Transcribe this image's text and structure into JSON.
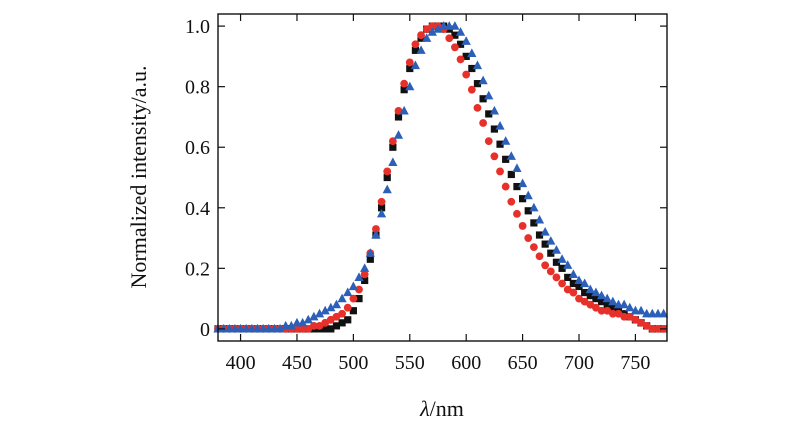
{
  "chart_data": {
    "type": "scatter",
    "xlabel_italic": "λ",
    "xlabel_rest": "/nm",
    "ylabel": "Normalized intensity/a.u.",
    "xlim": [
      380,
      778
    ],
    "ylim": [
      -0.04,
      1.04
    ],
    "xticks": [
      400,
      450,
      500,
      550,
      600,
      650,
      700,
      750
    ],
    "yticks": [
      0,
      0.2,
      0.4,
      0.6,
      0.8,
      1.0
    ],
    "ytick_labels": [
      "0",
      "0.2",
      "0.4",
      "0.6",
      "0.8",
      "1.0"
    ],
    "grid": false,
    "series": [
      {
        "marker": "square",
        "color": "#111111",
        "x": [
          380,
          385,
          390,
          395,
          400,
          405,
          410,
          415,
          420,
          425,
          430,
          435,
          440,
          445,
          450,
          455,
          460,
          465,
          470,
          475,
          480,
          485,
          490,
          495,
          500,
          505,
          510,
          515,
          520,
          525,
          530,
          535,
          540,
          545,
          550,
          555,
          560,
          565,
          570,
          575,
          580,
          585,
          590,
          595,
          600,
          605,
          610,
          615,
          620,
          625,
          630,
          635,
          640,
          645,
          650,
          655,
          660,
          665,
          670,
          675,
          680,
          685,
          690,
          695,
          700,
          705,
          710,
          715,
          720,
          725,
          730,
          735,
          740,
          745,
          750,
          755,
          760,
          765,
          770,
          775
        ],
        "y": [
          0.0,
          0.0,
          0.0,
          0.0,
          0.0,
          0.0,
          0.0,
          0.0,
          0.0,
          0.0,
          0.0,
          0.0,
          0.0,
          0.0,
          0.0,
          0.0,
          0.0,
          0.0,
          0.0,
          0.0,
          0.0,
          0.01,
          0.02,
          0.03,
          0.06,
          0.1,
          0.16,
          0.23,
          0.31,
          0.4,
          0.5,
          0.6,
          0.7,
          0.79,
          0.86,
          0.92,
          0.96,
          0.99,
          1.0,
          1.0,
          1.0,
          0.99,
          0.97,
          0.94,
          0.9,
          0.86,
          0.81,
          0.76,
          0.71,
          0.66,
          0.61,
          0.56,
          0.51,
          0.47,
          0.43,
          0.39,
          0.35,
          0.31,
          0.28,
          0.25,
          0.22,
          0.2,
          0.17,
          0.15,
          0.14,
          0.12,
          0.11,
          0.1,
          0.09,
          0.08,
          0.07,
          0.06,
          0.05,
          0.04,
          0.03,
          0.02,
          0.01,
          0.0,
          0.0,
          0.0
        ]
      },
      {
        "marker": "circle",
        "color": "#e8302a",
        "x": [
          380,
          385,
          390,
          395,
          400,
          405,
          410,
          415,
          420,
          425,
          430,
          435,
          440,
          445,
          450,
          455,
          460,
          465,
          470,
          475,
          480,
          485,
          490,
          495,
          500,
          505,
          510,
          515,
          520,
          525,
          530,
          535,
          540,
          545,
          550,
          555,
          560,
          565,
          570,
          575,
          580,
          585,
          590,
          595,
          600,
          605,
          610,
          615,
          620,
          625,
          630,
          635,
          640,
          645,
          650,
          655,
          660,
          665,
          670,
          675,
          680,
          685,
          690,
          695,
          700,
          705,
          710,
          715,
          720,
          725,
          730,
          735,
          740,
          745,
          750,
          755,
          760,
          765,
          770,
          775
        ],
        "y": [
          0.0,
          0.0,
          0.0,
          0.0,
          0.0,
          0.0,
          0.0,
          0.0,
          0.0,
          0.0,
          0.0,
          0.0,
          0.0,
          0.0,
          0.0,
          0.0,
          0.0,
          0.01,
          0.01,
          0.02,
          0.03,
          0.04,
          0.05,
          0.07,
          0.1,
          0.13,
          0.18,
          0.25,
          0.33,
          0.42,
          0.52,
          0.62,
          0.72,
          0.81,
          0.88,
          0.94,
          0.97,
          0.99,
          1.0,
          1.0,
          0.99,
          0.96,
          0.93,
          0.89,
          0.84,
          0.79,
          0.73,
          0.68,
          0.62,
          0.57,
          0.52,
          0.47,
          0.42,
          0.38,
          0.34,
          0.3,
          0.27,
          0.24,
          0.21,
          0.19,
          0.17,
          0.15,
          0.13,
          0.12,
          0.1,
          0.09,
          0.08,
          0.07,
          0.06,
          0.06,
          0.05,
          0.05,
          0.04,
          0.04,
          0.03,
          0.02,
          0.01,
          0.0,
          0.0,
          0.0
        ]
      },
      {
        "marker": "triangle",
        "color": "#2b5fb8",
        "x": [
          380,
          385,
          390,
          395,
          400,
          405,
          410,
          415,
          420,
          425,
          430,
          435,
          440,
          445,
          450,
          455,
          460,
          465,
          470,
          475,
          480,
          485,
          490,
          495,
          500,
          505,
          510,
          515,
          520,
          525,
          530,
          535,
          540,
          545,
          550,
          555,
          560,
          565,
          570,
          575,
          580,
          585,
          590,
          595,
          600,
          605,
          610,
          615,
          620,
          625,
          630,
          635,
          640,
          645,
          650,
          655,
          660,
          665,
          670,
          675,
          680,
          685,
          690,
          695,
          700,
          705,
          710,
          715,
          720,
          725,
          730,
          735,
          740,
          745,
          750,
          755,
          760,
          765,
          770,
          775
        ],
        "y": [
          0.0,
          0.0,
          0.0,
          0.0,
          0.0,
          0.0,
          0.0,
          0.0,
          0.0,
          0.0,
          0.0,
          0.0,
          0.01,
          0.01,
          0.02,
          0.02,
          0.03,
          0.04,
          0.05,
          0.06,
          0.07,
          0.08,
          0.1,
          0.12,
          0.14,
          0.17,
          0.2,
          0.25,
          0.31,
          0.38,
          0.46,
          0.55,
          0.64,
          0.72,
          0.8,
          0.87,
          0.92,
          0.96,
          0.98,
          0.99,
          1.0,
          1.0,
          1.0,
          0.98,
          0.95,
          0.91,
          0.87,
          0.82,
          0.77,
          0.72,
          0.67,
          0.62,
          0.57,
          0.53,
          0.48,
          0.44,
          0.4,
          0.36,
          0.32,
          0.29,
          0.26,
          0.23,
          0.21,
          0.18,
          0.16,
          0.15,
          0.13,
          0.12,
          0.11,
          0.1,
          0.09,
          0.08,
          0.08,
          0.07,
          0.06,
          0.06,
          0.05,
          0.05,
          0.05,
          0.05
        ]
      }
    ]
  }
}
